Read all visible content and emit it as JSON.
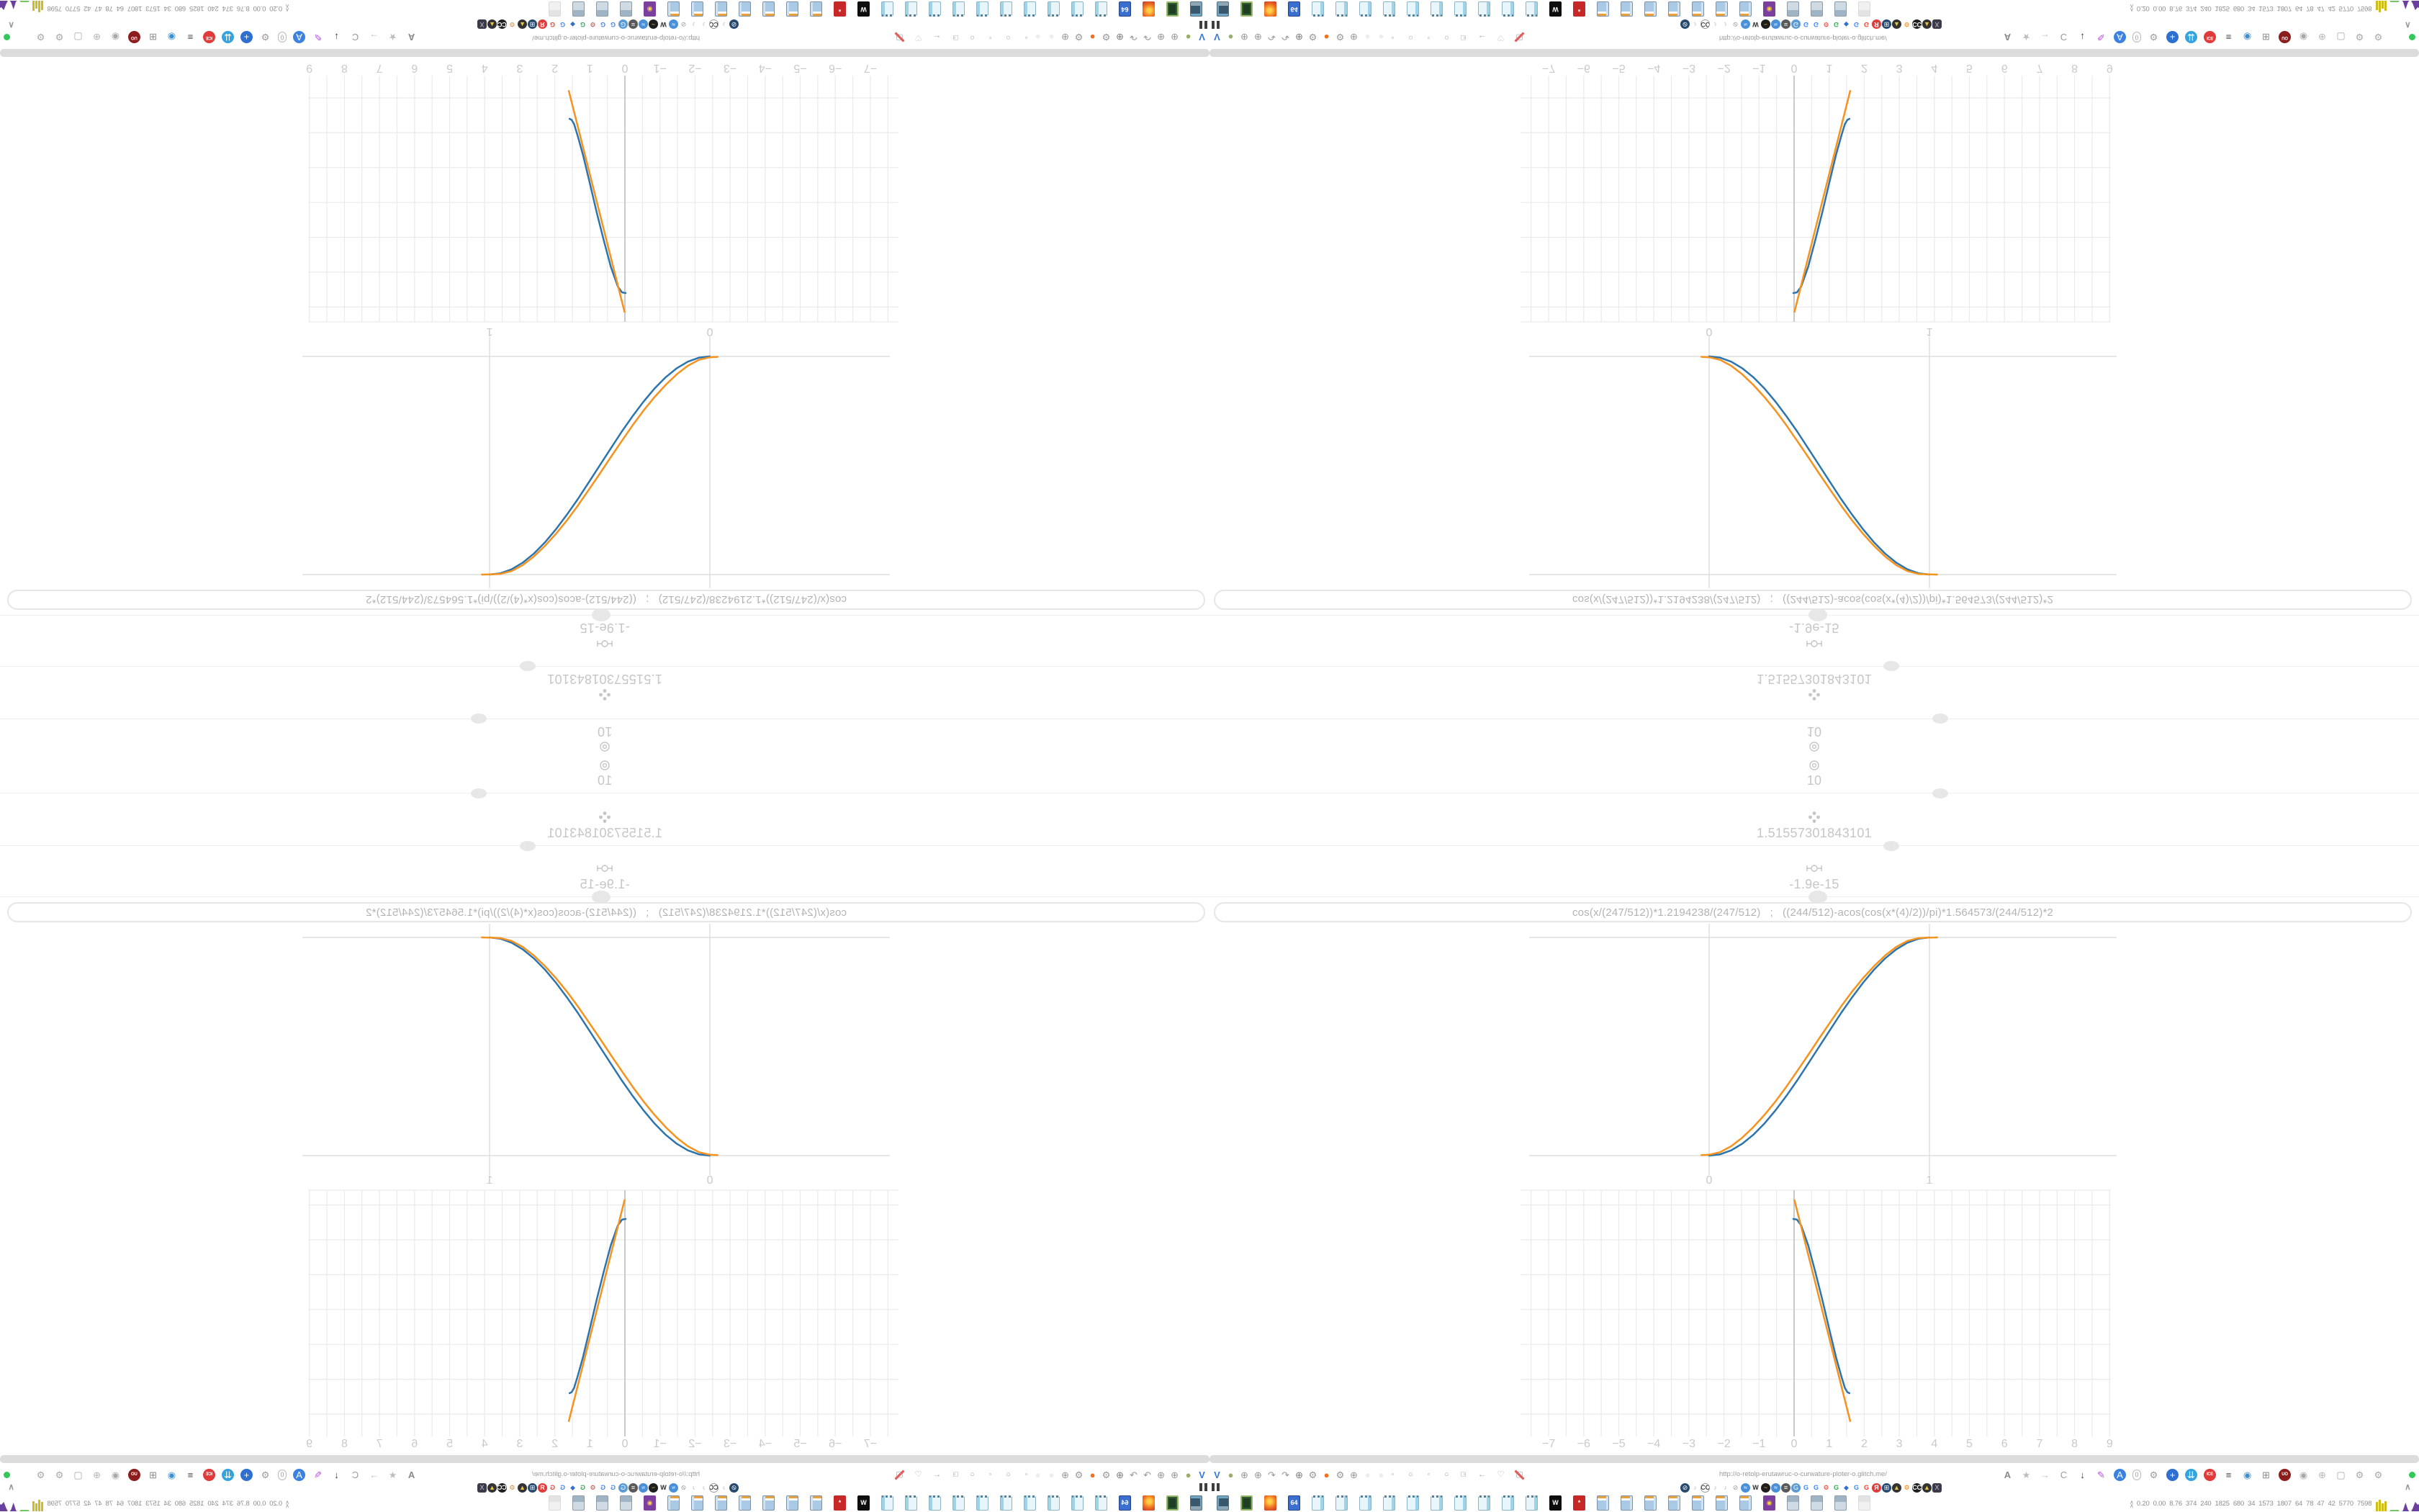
{
  "colors": {
    "curve_blue": "#2c74ad",
    "curve_orange": "#f6921e",
    "status_green": "#34c759",
    "gridline": "#eaeaea",
    "axis": "#c5c5c5",
    "label": "#c9c9c9"
  },
  "calc_rows": [
    {
      "icon": "target-icon",
      "value": "10"
    },
    {
      "icon": "quad-dot-icon",
      "value": "1.51557301843101"
    },
    {
      "icon": "commit-node-icon",
      "value": "-1.9e-15"
    }
  ],
  "formula_bar": {
    "value": "cos(x/(247/512))*1.2194238/(247/512)   ;   ((244/512)-acos(cos(x*(4)/2))/pi)*1.564573/(244/512)*2"
  },
  "chart_data": [
    {
      "id": "unit-interval-plot",
      "type": "line",
      "title": "",
      "xlabel": "",
      "ylabel": "",
      "x_ticks": [
        "0",
        "1"
      ],
      "x_tick_values": [
        0,
        1
      ],
      "xlim": [
        -0.82,
        1.9
      ],
      "ylim": [
        -0.17,
        1.17
      ],
      "x_gridlines": [
        0,
        1
      ],
      "y_gridlines": [
        0,
        1
      ],
      "grid": true,
      "legend": false,
      "series": [
        {
          "name": "series-blue",
          "color": "#2c74ad",
          "points": [
            [
              0,
              0
            ],
            [
              0.05,
              0.006
            ],
            [
              0.1,
              0.024
            ],
            [
              0.15,
              0.054
            ],
            [
              0.2,
              0.095
            ],
            [
              0.25,
              0.146
            ],
            [
              0.3,
              0.206
            ],
            [
              0.35,
              0.273
            ],
            [
              0.4,
              0.345
            ],
            [
              0.45,
              0.422
            ],
            [
              0.5,
              0.5
            ],
            [
              0.55,
              0.578
            ],
            [
              0.6,
              0.655
            ],
            [
              0.65,
              0.727
            ],
            [
              0.7,
              0.794
            ],
            [
              0.75,
              0.854
            ],
            [
              0.8,
              0.905
            ],
            [
              0.85,
              0.946
            ],
            [
              0.9,
              0.976
            ],
            [
              0.95,
              0.994
            ],
            [
              1,
              1
            ]
          ]
        },
        {
          "name": "series-orange",
          "color": "#f6921e",
          "points": [
            [
              -0.035,
              0.002
            ],
            [
              0,
              0.004
            ],
            [
              0.05,
              0.016
            ],
            [
              0.1,
              0.043
            ],
            [
              0.15,
              0.082
            ],
            [
              0.2,
              0.13
            ],
            [
              0.25,
              0.185
            ],
            [
              0.3,
              0.247
            ],
            [
              0.35,
              0.315
            ],
            [
              0.4,
              0.388
            ],
            [
              0.45,
              0.462
            ],
            [
              0.5,
              0.538
            ],
            [
              0.55,
              0.612
            ],
            [
              0.6,
              0.685
            ],
            [
              0.65,
              0.753
            ],
            [
              0.7,
              0.815
            ],
            [
              0.75,
              0.87
            ],
            [
              0.8,
              0.918
            ],
            [
              0.85,
              0.957
            ],
            [
              0.9,
              0.984
            ],
            [
              0.95,
              0.997
            ],
            [
              1,
              0.999
            ],
            [
              1.035,
              1.0
            ]
          ]
        }
      ]
    },
    {
      "id": "wide-range-plot",
      "type": "line",
      "title": "",
      "xlabel": "",
      "ylabel": "",
      "x_ticks": [
        "−7",
        "−6",
        "−5",
        "−4",
        "−3",
        "−2",
        "−1",
        "0",
        "1",
        "2",
        "3",
        "4",
        "5",
        "6",
        "7",
        "8",
        "9"
      ],
      "x_tick_values": [
        -7,
        -6,
        -5,
        -4,
        -3,
        -2,
        -1,
        0,
        1,
        2,
        3,
        4,
        5,
        6,
        7,
        8,
        9
      ],
      "xlim": [
        -7.6,
        9.3
      ],
      "ylim": [
        -0.7,
        6.6
      ],
      "minor_x_step": 0.5,
      "y_gridlines": [
        0,
        1,
        2,
        3,
        4,
        5,
        6
      ],
      "grid": true,
      "legend": false,
      "series": [
        {
          "name": "series-blue",
          "color": "#2c74ad",
          "points": [
            [
              -0.02,
              5.6
            ],
            [
              0.08,
              5.58
            ],
            [
              0.2,
              5.42
            ],
            [
              0.4,
              4.85
            ],
            [
              0.6,
              4.1
            ],
            [
              0.8,
              3.3
            ],
            [
              1.0,
              2.45
            ],
            [
              1.2,
              1.62
            ],
            [
              1.35,
              1.08
            ],
            [
              1.45,
              0.75
            ],
            [
              1.52,
              0.63
            ],
            [
              1.58,
              0.6
            ]
          ]
        },
        {
          "name": "series-orange",
          "color": "#f6921e",
          "points": [
            [
              0.01,
              6.14
            ],
            [
              1.6,
              -0.2
            ]
          ]
        }
      ]
    }
  ],
  "browser": {
    "url": "http://o-retolp-erutawruc-o-curwature-ploter-o.glitch.me/",
    "chevron_up": "∧",
    "url_left_icons": [
      {
        "name": "v-logo-icon",
        "g": "V",
        "c": "#3577d4",
        "cls": "b"
      },
      {
        "name": "camera-lens-icon",
        "g": "●",
        "c": "#9aae68"
      },
      {
        "name": "globe-icon",
        "g": "⊕",
        "c": "#979797"
      },
      {
        "name": "globe-icon",
        "g": "⊕",
        "c": "#979797"
      },
      {
        "name": "rotate-tool-icon",
        "g": "↷",
        "c": "#979797"
      },
      {
        "name": "rotate-tool-icon",
        "g": "↷",
        "c": "#979797"
      },
      {
        "name": "globe-icon",
        "g": "⊕",
        "c": "#7d7d7d"
      },
      {
        "name": "wrench-icon",
        "g": "⚙",
        "c": "#979797"
      },
      {
        "name": "firefox-icon",
        "g": "●",
        "c": "#f0701f"
      },
      {
        "name": "gear-icon",
        "g": "⚙",
        "c": "#979797"
      },
      {
        "name": "globe-icon",
        "g": "⊕",
        "c": "#979797"
      },
      {
        "name": "ghost-icon",
        "g": "●",
        "c": "#ededed"
      },
      {
        "name": "ghost-icon",
        "g": "●",
        "c": "#ededed"
      }
    ],
    "url_nav_icons": [
      {
        "name": "record-dot-icon",
        "g": "◦",
        "c": "#a3a3a3"
      },
      {
        "name": "circle-icon",
        "g": "○",
        "c": "#a3a3a3"
      },
      {
        "name": "record-dot-icon",
        "g": "◦",
        "c": "#a3a3a3"
      },
      {
        "name": "circle-icon",
        "g": "○",
        "c": "#a3a3a3"
      },
      {
        "name": "record-dot-icon",
        "g": "◦",
        "c": "#a3a3a3"
      },
      {
        "name": "stop-square-icon",
        "g": "□",
        "c": "#a3a3a3"
      },
      {
        "name": "back-arrow-icon",
        "g": "←",
        "c": "#a3a3a3"
      },
      {
        "name": "shield-outline-icon",
        "g": "♡",
        "c": "#a3a3a3"
      },
      {
        "name": "blocked-page-icon",
        "g": "▢",
        "c": "#a3a3a3",
        "cls": "slash"
      }
    ],
    "url_right_icons": [
      {
        "name": "translate-icon",
        "g": "A",
        "c": "#8a8a8a",
        "cls": "b"
      },
      {
        "name": "star-icon",
        "g": "★",
        "c": "#bdbdbd"
      },
      {
        "name": "forward-arrow-icon",
        "g": "→",
        "c": "#c2c2c2"
      },
      {
        "name": "reload-icon",
        "g": "C",
        "c": "#9b9b9b"
      },
      {
        "name": "download-icon",
        "g": "↓",
        "c": "#3a3a3a",
        "cls": "b"
      },
      {
        "name": "marker-icon",
        "g": "✎",
        "c": "#b44fd8"
      },
      {
        "name": "translate-blue-icon",
        "g": "A",
        "c": "#ffffff",
        "bg": "#3b82e0"
      },
      {
        "name": "counter-pill-icon",
        "g": "0",
        "c": "#9b9b9b",
        "cls": "pill"
      },
      {
        "name": "gear-icon",
        "g": "⚙",
        "c": "#9b9b9b"
      },
      {
        "name": "add-circle-icon",
        "g": "+",
        "c": "#ffffff",
        "bg": "#2f6fd0"
      },
      {
        "name": "download-manager-icon",
        "g": "⇊",
        "c": "#ffffff",
        "bg": "#35a3dd"
      },
      {
        "name": "record-badge-icon",
        "g": "ICE",
        "c": "#ffffff",
        "bg": "#e03a3a",
        "cls": "tiny-text"
      },
      {
        "name": "trash-grill-icon",
        "g": "≡",
        "c": "#4a4a4a",
        "cls": "b"
      },
      {
        "name": "globe-colored-icon",
        "g": "◉",
        "c": "#3f8fd0"
      },
      {
        "name": "keypad-icon",
        "g": "⊞",
        "c": "#8a8a8a"
      },
      {
        "name": "ublock-icon",
        "g": "UO",
        "c": "#ffffff",
        "bg": "#8c1d1d",
        "cls": "tiny-text"
      },
      {
        "name": "shield-badge-icon",
        "g": "◉",
        "c": "#a8a8a8"
      },
      {
        "name": "globe-icon",
        "g": "⊕",
        "c": "#b5b5b5"
      },
      {
        "name": "page-fold-icon",
        "g": "▢",
        "c": "#a8a8a8"
      },
      {
        "name": "wrench-icon",
        "g": "⚙",
        "c": "#a8a8a8"
      },
      {
        "name": "gear-icon",
        "g": "⚙",
        "c": "#a8a8a8"
      }
    ],
    "bookmark_icons": [
      {
        "name": "media-blocked-icon",
        "g": "⊘",
        "c": "#ffffff",
        "bg": "#27496d"
      },
      {
        "name": "mute-icon",
        "g": "♪",
        "c": "#b5b5b5"
      },
      {
        "name": "cc-icon",
        "g": "CC",
        "c": "#444444",
        "cls": "tiny-text ring"
      },
      {
        "name": "mute-icon",
        "g": "♪",
        "c": "#b5b5b5"
      },
      {
        "name": "mute-icon",
        "g": "♪",
        "c": "#b5b5b5"
      },
      {
        "name": "blocked-circle-icon",
        "g": "⊘",
        "c": "#9a9a9a"
      },
      {
        "name": "wave-icon",
        "g": "≈",
        "c": "#ffffff",
        "bg": "#4a90d9"
      },
      {
        "name": "wikipedia-icon",
        "g": "W",
        "c": "#2b2b2b",
        "cls": "b"
      },
      {
        "name": "waveform-icon",
        "g": "~",
        "c": "#e8c547",
        "bg": "#1e1e1e"
      },
      {
        "name": "wave-icon",
        "g": "≈",
        "c": "#ffffff",
        "bg": "#4a90d9"
      },
      {
        "name": "grill-icon",
        "g": "≡",
        "c": "#ffffff",
        "bg": "#5a5a5a"
      },
      {
        "name": "cloud-g-icon",
        "g": "G",
        "c": "#ffffff",
        "bg": "#5b9bd5"
      },
      {
        "name": "google-icon",
        "g": "G",
        "c": "#4285f4",
        "cls": "b"
      },
      {
        "name": "google-icon",
        "g": "G",
        "c": "#4285f4",
        "cls": "b"
      },
      {
        "name": "red-gear-icon",
        "g": "⚙",
        "c": "#d23f31"
      },
      {
        "name": "google-icon",
        "g": "G",
        "c": "#34a853",
        "cls": "b"
      },
      {
        "name": "water-drop-icon",
        "g": "◆",
        "c": "#2f6fce"
      },
      {
        "name": "google-icon",
        "g": "G",
        "c": "#4285f4",
        "cls": "b"
      },
      {
        "name": "google-icon",
        "g": "G",
        "c": "#ea4335",
        "cls": "b"
      },
      {
        "name": "yandex-icon",
        "g": "Я",
        "c": "#ffffff",
        "bg": "#e03a3a",
        "cls": "b"
      },
      {
        "name": "globe-grid-icon",
        "g": "⊞",
        "c": "#ffffff",
        "bg": "#27496d"
      },
      {
        "name": "photo-icon",
        "g": "▲",
        "c": "#e8c547",
        "bg": "#333333"
      },
      {
        "name": "orange-gear-icon",
        "g": "⚙",
        "c": "#e8821e"
      },
      {
        "name": "cc-dark-icon",
        "g": "CC",
        "c": "#ffffff",
        "bg": "#1e1e1e",
        "cls": "tiny-text"
      },
      {
        "name": "photo-icon",
        "g": "▲",
        "c": "#e8c547",
        "bg": "#333333"
      },
      {
        "name": "hourglass-icon",
        "g": "X",
        "c": "#cccccc",
        "bg": "#3a3a4a",
        "cls": "sq"
      }
    ],
    "taskbar_icons": [
      {
        "name": "computer-icon",
        "cls": "tk-monitor"
      },
      {
        "name": "terminal-icon",
        "cls": "tk-terminal"
      },
      {
        "name": "browser-app-icon",
        "cls": "tk-fox"
      },
      {
        "name": "floppy-disk-icon",
        "g": "64",
        "cls": "tk-floppy"
      },
      {
        "name": "notepad-icon",
        "cls": "tk-notepad"
      },
      {
        "name": "notepad-icon",
        "cls": "tk-notepad"
      },
      {
        "name": "notepad-icon",
        "cls": "tk-notepad"
      },
      {
        "name": "notepad-icon",
        "cls": "tk-notepad"
      },
      {
        "name": "notepad-icon",
        "cls": "tk-notepad"
      },
      {
        "name": "notepad-icon",
        "cls": "tk-notepad"
      },
      {
        "name": "notepad-icon",
        "cls": "tk-notepad"
      },
      {
        "name": "notepad-icon",
        "cls": "tk-notepad"
      },
      {
        "name": "notepad-icon",
        "cls": "tk-notepad"
      },
      {
        "name": "notepad-icon",
        "cls": "tk-notepad"
      },
      {
        "name": "dark-app-icon",
        "g": "W",
        "cls": "tk-dark"
      },
      {
        "name": "red-badge-icon",
        "g": "*",
        "cls": "tk-red"
      },
      {
        "name": "calculator-icon",
        "cls": "tk-calc"
      },
      {
        "name": "calculator-icon",
        "cls": "tk-calc"
      },
      {
        "name": "calculator-icon",
        "cls": "tk-calc"
      },
      {
        "name": "calculator-icon",
        "cls": "tk-calc"
      },
      {
        "name": "calculator-icon",
        "cls": "tk-calc"
      },
      {
        "name": "calculator-icon",
        "cls": "tk-calc"
      },
      {
        "name": "calculator-icon",
        "cls": "tk-calc"
      },
      {
        "name": "purple-app-icon",
        "g": "◉",
        "cls": "tk-purple"
      },
      {
        "name": "printer-icon",
        "cls": "tk-printer"
      },
      {
        "name": "printer-icon",
        "cls": "tk-printer"
      },
      {
        "name": "printer-icon",
        "cls": "tk-printer"
      },
      {
        "name": "ghost-printer-icon",
        "cls": "tk-printer tk-ghost"
      }
    ],
    "monitor": {
      "values": [
        "0.20",
        "0.00",
        "8.76",
        "374",
        "240",
        "1825",
        "680",
        "34",
        "1573",
        "1807",
        "64",
        "78",
        "47",
        "42",
        "5770",
        "7598"
      ],
      "charts": [
        {
          "name": "yellow-bars",
          "type": "bars",
          "color": "#cdbd1d",
          "values": [
            13,
            16,
            11,
            14
          ]
        },
        {
          "name": "green-line",
          "type": "area",
          "color": "#74c465",
          "values": [
            2,
            2,
            2,
            2
          ]
        },
        {
          "name": "purple-spike",
          "type": "area",
          "color": "#6b3fa0",
          "values": [
            1,
            12,
            2
          ]
        },
        {
          "name": "purple-mountain",
          "type": "area",
          "color": "#6b3fa0",
          "base": "#b8a818",
          "values": [
            4,
            13,
            9,
            11,
            5
          ]
        },
        {
          "name": "brown-blocks",
          "type": "bars",
          "color": "#a0622d",
          "values": [
            11,
            10,
            9
          ]
        },
        {
          "name": "maroon-spikes",
          "type": "area",
          "color": "#8e1c1c",
          "base": "#74c465",
          "values": [
            7,
            13,
            5,
            12,
            8
          ]
        }
      ]
    }
  }
}
